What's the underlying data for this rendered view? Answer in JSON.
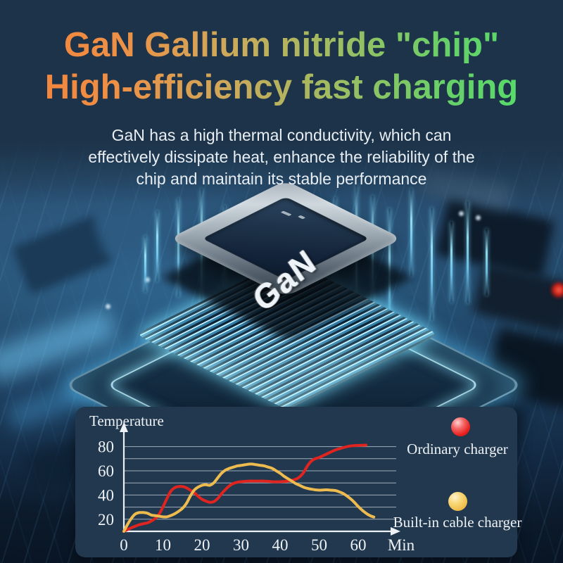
{
  "title": {
    "line1": "GaN Gallium nitride \"chip\"",
    "line2": "High-efficiency fast charging",
    "gradient": [
      "#f5813a",
      "#ef8f45",
      "#cfa85a",
      "#9dbd62",
      "#66d169",
      "#4fe06c"
    ]
  },
  "description": {
    "lines": [
      "GaN has a high thermal conductivity, which can",
      "effectively dissipate heat, enhance the reliability of the",
      "chip and maintain its stable performance"
    ]
  },
  "chip": {
    "label": "GaN"
  },
  "colors": {
    "background": "#1d3349",
    "panel": "#21384f",
    "grid": "#b7c3ce",
    "axis": "#eef2f6",
    "glow": "#7fdcff",
    "series_red": "#e02420",
    "series_yellow": "#eebc4e"
  },
  "chart_data": {
    "type": "line",
    "title": "Temperature",
    "xlabel": "Min",
    "ylabel": "Temperature",
    "xlim": [
      0,
      70
    ],
    "ylim": [
      10,
      90
    ],
    "x_ticks": [
      0,
      10,
      20,
      30,
      40,
      50,
      60
    ],
    "y_ticks": [
      20,
      40,
      60,
      80
    ],
    "grid_values": [
      20,
      30,
      40,
      50,
      60,
      70,
      80
    ],
    "grid": true,
    "legend_position": "right",
    "series": [
      {
        "name": "Ordinary charger",
        "color": "#e02420",
        "points": [
          [
            0,
            10
          ],
          [
            2,
            13
          ],
          [
            4,
            15.5
          ],
          [
            6,
            17
          ],
          [
            7,
            18.5
          ],
          [
            8,
            20.5
          ],
          [
            9,
            24
          ],
          [
            10,
            30
          ],
          [
            11,
            37
          ],
          [
            12,
            43
          ],
          [
            13,
            46
          ],
          [
            14,
            47
          ],
          [
            15,
            47
          ],
          [
            16,
            46
          ],
          [
            17,
            44
          ],
          [
            18,
            42
          ],
          [
            19,
            39
          ],
          [
            20,
            36.5
          ],
          [
            21,
            35
          ],
          [
            22,
            34
          ],
          [
            23,
            34.5
          ],
          [
            24,
            37
          ],
          [
            25,
            41
          ],
          [
            26,
            44.5
          ],
          [
            27,
            47.5
          ],
          [
            28,
            49.5
          ],
          [
            29,
            50.5
          ],
          [
            30,
            51
          ],
          [
            32,
            51.5
          ],
          [
            34,
            51.5
          ],
          [
            36,
            51.5
          ],
          [
            38,
            51
          ],
          [
            40,
            51
          ],
          [
            42,
            51.5
          ],
          [
            44,
            53
          ],
          [
            45,
            55
          ],
          [
            46,
            58.5
          ],
          [
            47,
            64
          ],
          [
            48,
            68
          ],
          [
            49,
            70
          ],
          [
            50,
            71
          ],
          [
            51,
            72.5
          ],
          [
            52,
            74
          ],
          [
            54,
            77
          ],
          [
            56,
            79
          ],
          [
            58,
            80.5
          ],
          [
            60,
            81
          ],
          [
            62,
            81.2
          ]
        ]
      },
      {
        "name": "Built-in cable charger",
        "color": "#eebc4e",
        "points": [
          [
            0,
            10
          ],
          [
            1,
            16
          ],
          [
            2,
            21
          ],
          [
            3,
            24.5
          ],
          [
            4,
            25.5
          ],
          [
            5,
            25.5
          ],
          [
            6,
            25
          ],
          [
            7,
            23.5
          ],
          [
            8,
            23
          ],
          [
            9,
            22.5
          ],
          [
            10,
            22
          ],
          [
            11,
            22
          ],
          [
            12,
            23
          ],
          [
            13,
            24.5
          ],
          [
            14,
            26.5
          ],
          [
            15,
            29
          ],
          [
            16,
            33
          ],
          [
            17,
            39
          ],
          [
            18,
            44
          ],
          [
            19,
            46.5
          ],
          [
            20,
            48
          ],
          [
            21,
            48.5
          ],
          [
            22,
            48
          ],
          [
            23,
            50
          ],
          [
            24,
            54
          ],
          [
            25,
            58
          ],
          [
            26,
            60.5
          ],
          [
            27,
            62
          ],
          [
            28,
            63
          ],
          [
            29,
            64
          ],
          [
            30,
            64.5
          ],
          [
            31,
            65
          ],
          [
            32,
            65.5
          ],
          [
            33,
            65.5
          ],
          [
            34,
            65
          ],
          [
            35,
            64.5
          ],
          [
            36,
            64
          ],
          [
            37,
            63
          ],
          [
            38,
            62
          ],
          [
            39,
            60
          ],
          [
            40,
            58
          ],
          [
            41,
            55.5
          ],
          [
            42,
            53.5
          ],
          [
            43,
            51.5
          ],
          [
            44,
            49.5
          ],
          [
            45,
            48
          ],
          [
            46,
            46.5
          ],
          [
            47,
            45.5
          ],
          [
            48,
            44.8
          ],
          [
            49,
            44.3
          ],
          [
            50,
            44
          ],
          [
            51,
            44.2
          ],
          [
            52,
            44.3
          ],
          [
            53,
            44
          ],
          [
            54,
            43.8
          ],
          [
            55,
            42.8
          ],
          [
            56,
            41.5
          ],
          [
            57,
            39.5
          ],
          [
            58,
            37
          ],
          [
            59,
            34
          ],
          [
            60,
            30.5
          ],
          [
            61,
            27.5
          ],
          [
            62,
            25
          ],
          [
            63,
            23
          ],
          [
            64,
            21.8
          ]
        ]
      }
    ],
    "legend": [
      {
        "label": "Ordinary charger",
        "color": "#e8201d"
      },
      {
        "label": "Built-in cable charger",
        "color": "#eebd4a"
      }
    ]
  }
}
